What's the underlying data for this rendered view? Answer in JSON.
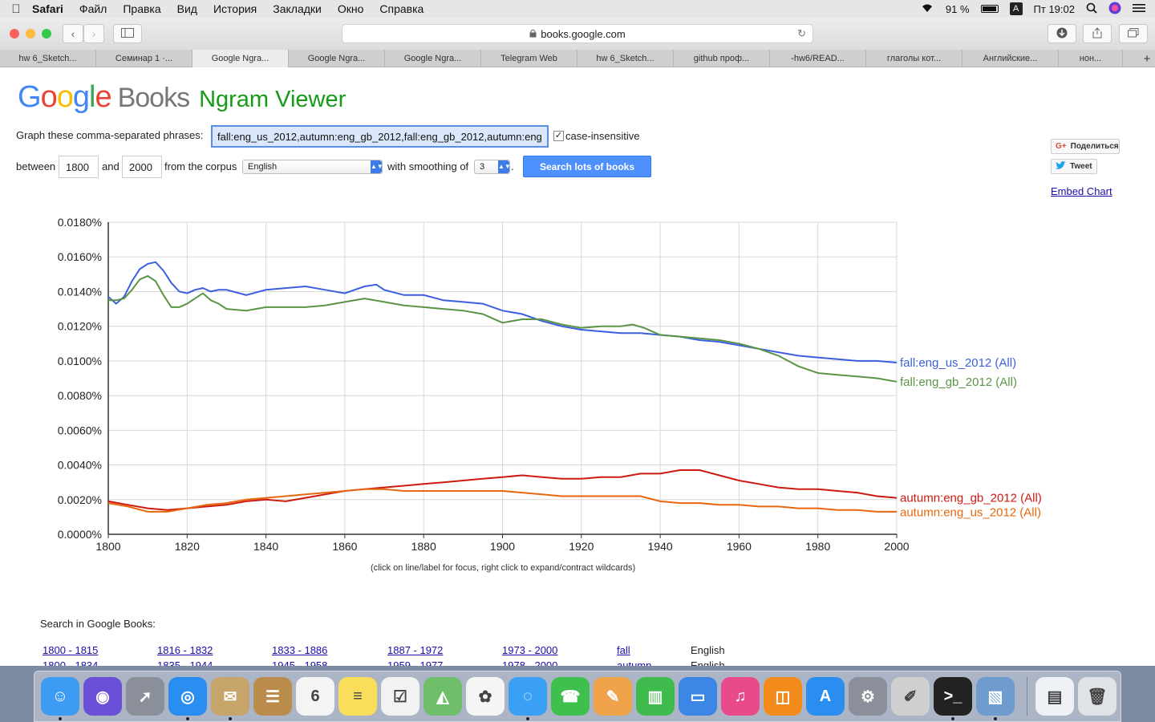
{
  "menubar": {
    "apple": "",
    "app_name": "Safari",
    "items": [
      "Файл",
      "Правка",
      "Вид",
      "История",
      "Закладки",
      "Окно",
      "Справка"
    ],
    "battery": "91 %",
    "input_indicator": "A",
    "clock": "Пт 19:02"
  },
  "toolbar": {
    "url": "books.google.com",
    "back": "‹",
    "forward": "›"
  },
  "tabs": [
    "hw 6_Sketch...",
    "Семинар 1 ·...",
    "Google Ngra...",
    "Google Ngra...",
    "Google Ngra...",
    "Telegram Web",
    "hw 6_Sketch...",
    "github проф...",
    "-hw6/READ...",
    "глаголы кот...",
    "Английские...",
    "нон..."
  ],
  "tab_new": "+",
  "logo": {
    "g": [
      "G",
      "o",
      "o",
      "g",
      "l",
      "e"
    ],
    "books": "Books",
    "ngram": "Ngram Viewer"
  },
  "form": {
    "phrases_label": "Graph these comma-separated phrases:",
    "phrases_value": "fall:eng_us_2012,autumn:eng_gb_2012,fall:eng_gb_2012,autumn:eng_us_2012",
    "case_label": "case-insensitive",
    "case_check": "✓",
    "between_label": "between",
    "year_start": "1800",
    "and_label": "and",
    "year_end": "2000",
    "corpus_label": "from the corpus",
    "corpus_value": "English",
    "smoothing_label": "with smoothing of",
    "smoothing_value": "3",
    "period": ".",
    "search_button": "Search lots of books"
  },
  "share": {
    "gplus_icon": "G+",
    "gplus": "Поделиться",
    "tweet": "Tweet",
    "embed": "Embed Chart"
  },
  "chart_data": {
    "type": "line",
    "xlim": [
      1800,
      2000
    ],
    "ylim": [
      0,
      0.018
    ],
    "x_ticks": [
      1800,
      1820,
      1840,
      1860,
      1880,
      1900,
      1920,
      1940,
      1960,
      1980,
      2000
    ],
    "y_ticks": [
      "0.0000%",
      "0.0020%",
      "0.0040%",
      "0.0060%",
      "0.0080%",
      "0.0100%",
      "0.0120%",
      "0.0140%",
      "0.0160%",
      "0.0180%"
    ],
    "grid": true,
    "series": [
      {
        "name": "fall:eng_us_2012 (All)",
        "color": "#3b5fe0",
        "x": [
          1800,
          1802,
          1804,
          1806,
          1808,
          1810,
          1812,
          1814,
          1816,
          1818,
          1820,
          1822,
          1824,
          1826,
          1828,
          1830,
          1835,
          1840,
          1845,
          1850,
          1855,
          1860,
          1865,
          1868,
          1870,
          1875,
          1880,
          1885,
          1890,
          1895,
          1900,
          1905,
          1910,
          1915,
          1920,
          1925,
          1930,
          1935,
          1940,
          1945,
          1950,
          1955,
          1960,
          1965,
          1970,
          1975,
          1980,
          1985,
          1990,
          1995,
          2000
        ],
        "values": [
          0.0137,
          0.0133,
          0.0137,
          0.0146,
          0.0153,
          0.0156,
          0.0157,
          0.0152,
          0.0145,
          0.014,
          0.0139,
          0.0141,
          0.0142,
          0.014,
          0.0141,
          0.0141,
          0.0138,
          0.0141,
          0.0142,
          0.0143,
          0.0141,
          0.0139,
          0.0143,
          0.0144,
          0.0141,
          0.0138,
          0.0138,
          0.0135,
          0.0134,
          0.0133,
          0.0129,
          0.0127,
          0.0123,
          0.012,
          0.0118,
          0.0117,
          0.0116,
          0.0116,
          0.0115,
          0.0114,
          0.0112,
          0.0111,
          0.0109,
          0.0107,
          0.0105,
          0.0103,
          0.0102,
          0.0101,
          0.01,
          0.01,
          0.0099
        ]
      },
      {
        "name": "fall:eng_gb_2012 (All)",
        "color": "#5a9545",
        "x": [
          1800,
          1802,
          1804,
          1806,
          1808,
          1810,
          1812,
          1814,
          1816,
          1818,
          1820,
          1822,
          1824,
          1826,
          1828,
          1830,
          1835,
          1840,
          1845,
          1850,
          1855,
          1860,
          1865,
          1870,
          1875,
          1880,
          1885,
          1890,
          1895,
          1900,
          1905,
          1910,
          1915,
          1920,
          1925,
          1930,
          1933,
          1936,
          1940,
          1945,
          1950,
          1955,
          1960,
          1965,
          1970,
          1975,
          1980,
          1985,
          1990,
          1995,
          2000
        ],
        "values": [
          0.0135,
          0.0135,
          0.0136,
          0.0141,
          0.0147,
          0.0149,
          0.0146,
          0.0138,
          0.0131,
          0.0131,
          0.0133,
          0.0136,
          0.0139,
          0.0135,
          0.0133,
          0.013,
          0.0129,
          0.0131,
          0.0131,
          0.0131,
          0.0132,
          0.0134,
          0.0136,
          0.0134,
          0.0132,
          0.0131,
          0.013,
          0.0129,
          0.0127,
          0.0122,
          0.0124,
          0.0124,
          0.0121,
          0.0119,
          0.012,
          0.012,
          0.0121,
          0.0119,
          0.0115,
          0.0114,
          0.0113,
          0.0112,
          0.011,
          0.0107,
          0.0103,
          0.0097,
          0.0093,
          0.0092,
          0.0091,
          0.009,
          0.0088
        ]
      },
      {
        "name": "autumn:eng_gb_2012 (All)",
        "color": "#cc1a10",
        "x": [
          1800,
          1805,
          1810,
          1815,
          1820,
          1825,
          1830,
          1835,
          1840,
          1845,
          1850,
          1855,
          1860,
          1865,
          1870,
          1875,
          1880,
          1885,
          1890,
          1895,
          1900,
          1905,
          1910,
          1915,
          1920,
          1925,
          1930,
          1935,
          1940,
          1945,
          1950,
          1955,
          1960,
          1965,
          1970,
          1975,
          1980,
          1985,
          1990,
          1995,
          2000
        ],
        "values": [
          0.0019,
          0.0017,
          0.0015,
          0.0014,
          0.0015,
          0.0016,
          0.0017,
          0.0019,
          0.002,
          0.0019,
          0.0021,
          0.0023,
          0.0025,
          0.0026,
          0.0027,
          0.0028,
          0.0029,
          0.003,
          0.0031,
          0.0032,
          0.0033,
          0.0034,
          0.0033,
          0.0032,
          0.0032,
          0.0033,
          0.0033,
          0.0035,
          0.0035,
          0.0037,
          0.0037,
          0.0034,
          0.0031,
          0.0029,
          0.0027,
          0.0026,
          0.0026,
          0.0025,
          0.0024,
          0.0022,
          0.0021
        ]
      },
      {
        "name": "autumn:eng_us_2012 (All)",
        "color": "#e8670e",
        "x": [
          1800,
          1805,
          1810,
          1815,
          1820,
          1825,
          1830,
          1835,
          1840,
          1845,
          1850,
          1855,
          1860,
          1865,
          1870,
          1875,
          1880,
          1885,
          1890,
          1895,
          1900,
          1905,
          1910,
          1915,
          1920,
          1925,
          1930,
          1935,
          1940,
          1945,
          1950,
          1955,
          1960,
          1965,
          1970,
          1975,
          1980,
          1985,
          1990,
          1995,
          2000
        ],
        "values": [
          0.0018,
          0.0016,
          0.0013,
          0.0013,
          0.0015,
          0.0017,
          0.0018,
          0.002,
          0.0021,
          0.0022,
          0.0023,
          0.0024,
          0.0025,
          0.0026,
          0.0026,
          0.0025,
          0.0025,
          0.0025,
          0.0025,
          0.0025,
          0.0025,
          0.0024,
          0.0023,
          0.0022,
          0.0022,
          0.0022,
          0.0022,
          0.0022,
          0.0019,
          0.0018,
          0.0018,
          0.0017,
          0.0017,
          0.0016,
          0.0016,
          0.0015,
          0.0015,
          0.0014,
          0.0014,
          0.0013,
          0.0013
        ]
      }
    ]
  },
  "chart_note": "(click on line/label for focus, right click to expand/contract wildcards)",
  "search_in": {
    "label": "Search in Google Books:",
    "row1": [
      "1800 - 1815",
      "1816 - 1832",
      "1833 - 1886",
      "1887 - 1972",
      "1973 - 2000",
      "fall",
      "English"
    ],
    "row2": [
      "1800 - 1834",
      "1835 - 1944",
      "1945 - 1958",
      "1959 - 1977",
      "1978 - 2000",
      "autumn",
      "English"
    ]
  },
  "dock": {
    "apps": [
      {
        "name": "Finder",
        "glyph": "☺",
        "color": "#3d9bf3",
        "running": true
      },
      {
        "name": "Siri",
        "glyph": "◉",
        "color": "#6b4fd6",
        "running": false
      },
      {
        "name": "Launchpad",
        "glyph": "➚",
        "color": "#8a8f99",
        "running": false
      },
      {
        "name": "Safari",
        "glyph": "◎",
        "color": "#2a8ef0",
        "running": true
      },
      {
        "name": "Mail",
        "glyph": "✉",
        "color": "#c7a56a",
        "running": true
      },
      {
        "name": "Contacts",
        "glyph": "☰",
        "color": "#b98c4c",
        "running": false
      },
      {
        "name": "Calendar",
        "glyph": "6",
        "color": "#f4f4f4",
        "running": false
      },
      {
        "name": "Notes",
        "glyph": "≡",
        "color": "#f8de5b",
        "running": false
      },
      {
        "name": "Reminders",
        "glyph": "☑",
        "color": "#f2f2f2",
        "running": false
      },
      {
        "name": "Maps",
        "glyph": "◭",
        "color": "#6fbf6a",
        "running": false
      },
      {
        "name": "Photos",
        "glyph": "✿",
        "color": "#f5f5f5",
        "running": false
      },
      {
        "name": "Messages",
        "glyph": "◌",
        "color": "#3aa0f5",
        "running": true
      },
      {
        "name": "FaceTime",
        "glyph": "☎",
        "color": "#3fbf4e",
        "running": false
      },
      {
        "name": "Pages",
        "glyph": "✎",
        "color": "#f0a34b",
        "running": false
      },
      {
        "name": "Numbers",
        "glyph": "▥",
        "color": "#3fbb4e",
        "running": false
      },
      {
        "name": "Keynote",
        "glyph": "▭",
        "color": "#3d86e6",
        "running": false
      },
      {
        "name": "iTunes",
        "glyph": "♫",
        "color": "#e94a8a",
        "running": false
      },
      {
        "name": "iBooks",
        "glyph": "◫",
        "color": "#f28a1c",
        "running": false
      },
      {
        "name": "App Store",
        "glyph": "A",
        "color": "#2a8ef0",
        "running": false
      },
      {
        "name": "System Preferences",
        "glyph": "⚙",
        "color": "#8a8f99",
        "running": false
      },
      {
        "name": "Script Editor",
        "glyph": "✐",
        "color": "#cfcfcf",
        "running": false
      },
      {
        "name": "Terminal",
        "glyph": ">_",
        "color": "#222222",
        "running": true
      },
      {
        "name": "Preview",
        "glyph": "▧",
        "color": "#6f9ccf",
        "running": true
      }
    ],
    "extras": [
      {
        "name": "Downloads Stack",
        "glyph": "▤",
        "color": "#eef1f5"
      },
      {
        "name": "Trash",
        "glyph": "🗑",
        "color": "#dfe3e8"
      }
    ]
  }
}
